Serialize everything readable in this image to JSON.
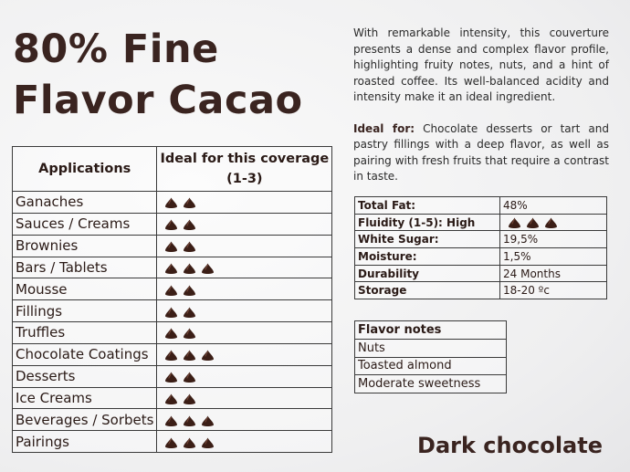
{
  "title_line1": "80% Fine",
  "title_line2": "Flavor Cacao",
  "applications": {
    "headers": [
      "Applications",
      "Ideal for this coverage",
      "(1-3)"
    ],
    "rows": [
      {
        "name": "Ganaches",
        "rating": 2
      },
      {
        "name": "Sauces / Creams",
        "rating": 2
      },
      {
        "name": "Brownies",
        "rating": 2
      },
      {
        "name": "Bars / Tablets",
        "rating": 3
      },
      {
        "name": "Mousse",
        "rating": 2
      },
      {
        "name": "Fillings",
        "rating": 2
      },
      {
        "name": "Truffles",
        "rating": 2
      },
      {
        "name": "Chocolate Coatings",
        "rating": 3
      },
      {
        "name": "Desserts",
        "rating": 2
      },
      {
        "name": "Ice Creams",
        "rating": 2
      },
      {
        "name": "Beverages / Sorbets",
        "rating": 3
      },
      {
        "name": "Pairings",
        "rating": 3
      }
    ]
  },
  "description": "With remarkable intensity, this couverture presents a dense and complex flavor profile, highlighting fruity notes, nuts, and a hint of roasted coffee. Its well-balanced acidity and intensity make it an ideal ingredient.",
  "ideal_for_label": "Ideal for:",
  "ideal_for_text": " Chocolate desserts or tart and pastry fillings with a deep flavor, as well as pairing with fresh fruits that require a contrast in taste.",
  "properties": [
    {
      "key": "Total Fat:",
      "value": "48%"
    },
    {
      "key": "Fluidity (1-5): High",
      "value": "",
      "rating": 3
    },
    {
      "key": "White Sugar:",
      "value": "19,5%"
    },
    {
      "key": "Moisture:",
      "value": "1,5%"
    },
    {
      "key": "Durability",
      "value": "24 Months"
    },
    {
      "key": "Storage",
      "value": "18-20 ºc"
    }
  ],
  "flavor_notes": {
    "header": "Flavor notes",
    "items": [
      "Nuts",
      "Toasted almond",
      "Moderate sweetness"
    ]
  },
  "footer": "Dark chocolate",
  "colors": {
    "chip": "#3b1e16",
    "title": "#3a2420"
  }
}
